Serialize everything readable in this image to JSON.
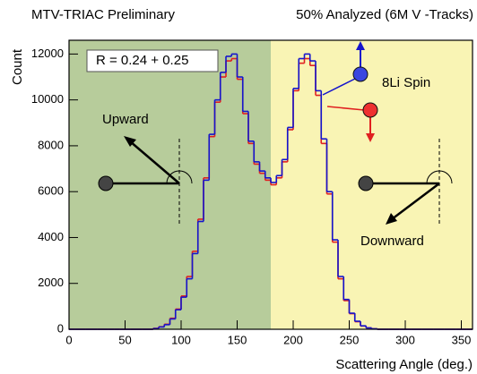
{
  "chart_data": {
    "type": "histogram",
    "title": "MTV-TRIAC Preliminary",
    "subtitle": "50% Analyzed (6M V -Tracks)",
    "ylabel": "Count",
    "xlabel": "Scattering Angle (deg.)",
    "stat_box": "R = 0.24 +  0.25",
    "annotations": [
      "Upward",
      "Downward",
      "8Li Spin"
    ],
    "shaded_regions": [
      {
        "from": 0,
        "to": 180,
        "color": "#b7cc9b"
      },
      {
        "from": 180,
        "to": 360,
        "color": "#f9f4b4"
      }
    ],
    "bins": [
      0,
      5,
      10,
      15,
      20,
      25,
      30,
      35,
      40,
      45,
      50,
      55,
      60,
      65,
      70,
      75,
      80,
      85,
      90,
      95,
      100,
      105,
      110,
      115,
      120,
      125,
      130,
      135,
      140,
      145,
      150,
      155,
      160,
      165,
      170,
      175,
      180,
      185,
      190,
      195,
      200,
      205,
      210,
      215,
      220,
      225,
      230,
      235,
      240,
      245,
      250,
      255,
      260,
      265,
      270,
      275,
      280,
      285,
      290,
      295,
      300,
      305,
      310,
      315,
      320,
      325,
      330,
      335,
      340,
      345,
      350,
      355,
      360
    ],
    "series": [
      {
        "color": "#e02020",
        "values": [
          0,
          0,
          0,
          0,
          0,
          0,
          0,
          0,
          0,
          0,
          0,
          0,
          0,
          0,
          0,
          40,
          110,
          220,
          480,
          880,
          1450,
          2300,
          3400,
          4800,
          6600,
          8400,
          9900,
          11000,
          11700,
          11800,
          10900,
          9400,
          8100,
          7200,
          6800,
          6500,
          6300,
          6600,
          7300,
          8700,
          10400,
          11600,
          11800,
          11500,
          10200,
          8100,
          5900,
          3800,
          2200,
          1250,
          680,
          330,
          140,
          60,
          20,
          0,
          0,
          0,
          0,
          0,
          0,
          0,
          0,
          0,
          0,
          0,
          0,
          0,
          0,
          0,
          0,
          0
        ]
      },
      {
        "color": "#1515cc",
        "values": [
          0,
          0,
          0,
          0,
          0,
          0,
          0,
          0,
          0,
          0,
          0,
          0,
          0,
          0,
          0,
          30,
          100,
          200,
          450,
          850,
          1400,
          2200,
          3300,
          4700,
          6500,
          8500,
          10000,
          11200,
          11900,
          12000,
          11000,
          9500,
          8200,
          7300,
          6900,
          6600,
          6400,
          6700,
          7400,
          8800,
          10500,
          11800,
          12000,
          11700,
          10400,
          8300,
          6000,
          3900,
          2300,
          1300,
          700,
          350,
          150,
          60,
          20,
          0,
          0,
          0,
          0,
          0,
          0,
          0,
          0,
          0,
          0,
          0,
          0,
          0,
          0,
          0,
          0,
          0
        ]
      }
    ],
    "xlim": [
      0,
      360
    ],
    "ylim": [
      0,
      12600
    ],
    "xticks": [
      0,
      50,
      100,
      150,
      200,
      250,
      300,
      350
    ],
    "yticks": [
      0,
      2000,
      4000,
      6000,
      8000,
      10000,
      12000
    ]
  }
}
